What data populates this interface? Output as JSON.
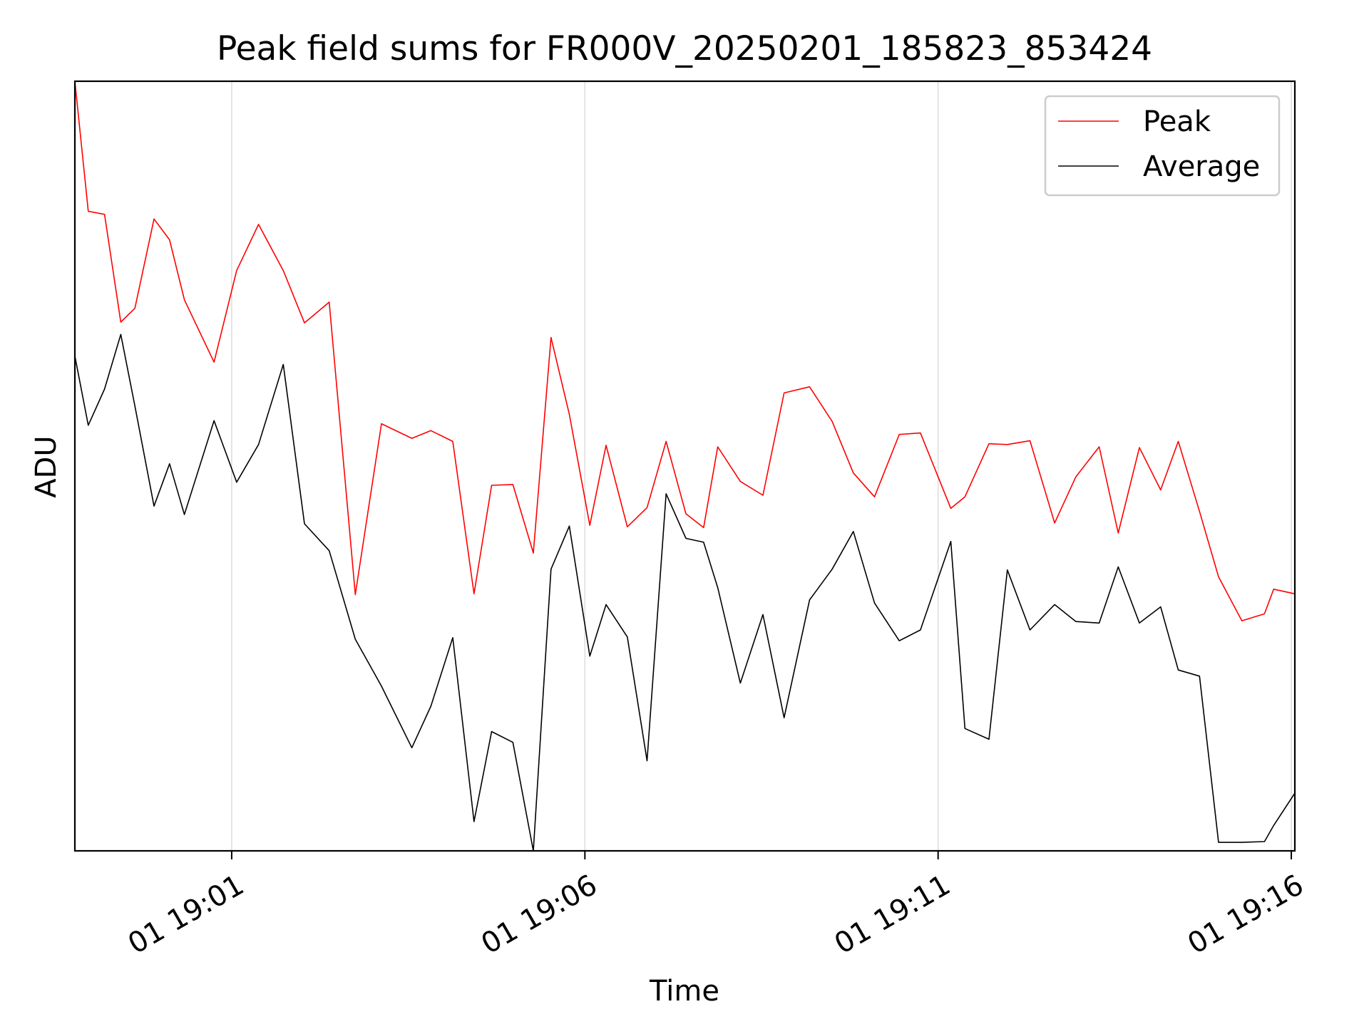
{
  "chart_data": {
    "type": "line",
    "title": "Peak field sums for FR000V_20250201_185823_853424",
    "xlabel": "Time",
    "ylabel": "ADU",
    "x_tick_labels": [
      "01 19:01",
      "01 19:06",
      "01 19:11",
      "01 19:16"
    ],
    "x_tick_minutes": [
      61,
      66,
      71,
      76
    ],
    "xlim_minutes": [
      58.78,
      76.05
    ],
    "ylim": [
      0,
      1000
    ],
    "y_ticks_shown": false,
    "grid": "vertical",
    "legend_position": "top-right",
    "series": [
      {
        "name": "Peak",
        "color": "#ff0000",
        "x_minutes": [
          58.78,
          58.97,
          59.2,
          59.43,
          59.63,
          59.9,
          60.12,
          60.33,
          60.75,
          61.07,
          61.38,
          61.73,
          62.03,
          62.38,
          62.75,
          63.12,
          63.55,
          63.82,
          64.13,
          64.43,
          64.68,
          64.98,
          65.27,
          65.52,
          65.78,
          66.07,
          66.3,
          66.6,
          66.88,
          67.15,
          67.43,
          67.68,
          67.88,
          68.2,
          68.52,
          68.82,
          69.18,
          69.5,
          69.8,
          70.1,
          70.45,
          70.75,
          71.18,
          71.38,
          71.72,
          71.98,
          72.3,
          72.65,
          72.95,
          73.28,
          73.55,
          73.85,
          74.15,
          74.4,
          74.7,
          74.97,
          75.3,
          75.62,
          75.75,
          76.05
        ],
        "values": [
          1000,
          831,
          827,
          687,
          705,
          821,
          794,
          716,
          635,
          754,
          814,
          754,
          686,
          713,
          333,
          555,
          536,
          546,
          532,
          334,
          475,
          476,
          387,
          667,
          567,
          423,
          527,
          421,
          446,
          532,
          438,
          420,
          525,
          480,
          462,
          595,
          603,
          558,
          491,
          460,
          541,
          543,
          445,
          460,
          529,
          528,
          533,
          426,
          486,
          525,
          413,
          524,
          469,
          532,
          441,
          356,
          299,
          308,
          340,
          334
        ]
      },
      {
        "name": "Average",
        "color": "#000000",
        "x_minutes": [
          58.78,
          58.97,
          59.2,
          59.43,
          59.63,
          59.9,
          60.12,
          60.33,
          60.75,
          61.07,
          61.38,
          61.73,
          62.03,
          62.38,
          62.75,
          63.12,
          63.55,
          63.82,
          64.13,
          64.43,
          64.68,
          64.98,
          65.27,
          65.52,
          65.78,
          66.07,
          66.3,
          66.6,
          66.88,
          67.15,
          67.43,
          67.68,
          67.88,
          68.2,
          68.52,
          68.82,
          69.18,
          69.5,
          69.8,
          70.1,
          70.45,
          70.75,
          71.18,
          71.38,
          71.72,
          71.98,
          72.3,
          72.65,
          72.95,
          73.28,
          73.55,
          73.85,
          74.15,
          74.4,
          74.7,
          74.97,
          75.3,
          75.62,
          75.75,
          76.05
        ],
        "values": [
          643,
          553,
          600,
          671,
          578,
          448,
          503,
          437,
          559,
          479,
          528,
          632,
          425,
          390,
          275,
          214,
          134,
          188,
          277,
          38,
          155,
          141,
          0,
          366,
          422,
          253,
          320,
          278,
          117,
          464,
          406,
          401,
          342,
          218,
          307,
          173,
          326,
          366,
          415,
          322,
          273,
          287,
          402,
          159,
          145,
          365,
          287,
          320,
          298,
          296,
          369,
          296,
          317,
          235,
          227,
          11,
          11,
          12,
          33,
          75
        ]
      }
    ]
  }
}
